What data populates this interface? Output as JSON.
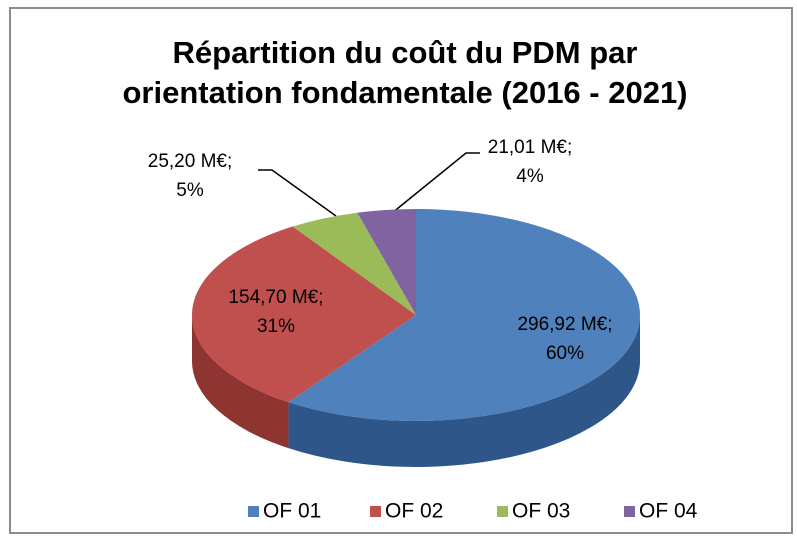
{
  "chart_data": {
    "type": "pie3d",
    "title": [
      "Répartition du coût du PDM par",
      "orientation fondamentale (2016 - 2021)"
    ],
    "categories": [
      "OF 01",
      "OF 02",
      "OF 03",
      "OF 04"
    ],
    "values": [
      296.92,
      154.7,
      25.2,
      21.01
    ],
    "value_labels": [
      [
        "296,92 M€;",
        "60%"
      ],
      [
        "154,70 M€;",
        "31%"
      ],
      [
        "25,20 M€;",
        "5%"
      ],
      [
        "21,01 M€;",
        "4%"
      ]
    ],
    "colors": [
      "#4f81bd",
      "#c0504d",
      "#9bbb59",
      "#8064a2"
    ],
    "side_colors": [
      "#2f5688",
      "#8e3431",
      "#6f8a3a",
      "#5a4478"
    ],
    "legend": "bottom"
  }
}
